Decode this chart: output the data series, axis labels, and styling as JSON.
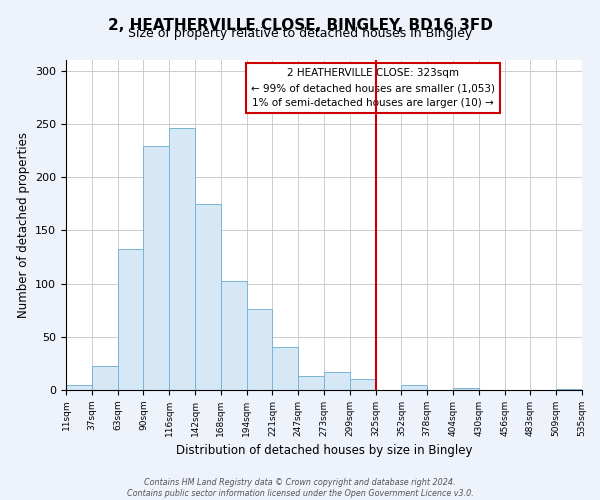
{
  "title": "2, HEATHERVILLE CLOSE, BINGLEY, BD16 3FD",
  "subtitle": "Size of property relative to detached houses in Bingley",
  "xlabel": "Distribution of detached houses by size in Bingley",
  "ylabel": "Number of detached properties",
  "bin_labels": [
    "11sqm",
    "37sqm",
    "63sqm",
    "90sqm",
    "116sqm",
    "142sqm",
    "168sqm",
    "194sqm",
    "221sqm",
    "247sqm",
    "273sqm",
    "299sqm",
    "325sqm",
    "352sqm",
    "378sqm",
    "404sqm",
    "430sqm",
    "456sqm",
    "483sqm",
    "509sqm",
    "535sqm"
  ],
  "bar_heights": [
    5,
    23,
    132,
    229,
    246,
    175,
    102,
    76,
    40,
    13,
    17,
    10,
    0,
    5,
    0,
    2,
    0,
    0,
    0,
    1
  ],
  "bar_color": "#d6e8f5",
  "bar_edgecolor": "#7ab4d4",
  "vline_index": 12,
  "vline_color": "#cc0000",
  "annotation_title": "2 HEATHERVILLE CLOSE: 323sqm",
  "annotation_line1": "← 99% of detached houses are smaller (1,053)",
  "annotation_line2": "1% of semi-detached houses are larger (10) →",
  "annotation_box_color": "#ffffff",
  "annotation_box_edgecolor": "#cc0000",
  "ylim": [
    0,
    310
  ],
  "yticks": [
    0,
    50,
    100,
    150,
    200,
    250,
    300
  ],
  "footer1": "Contains HM Land Registry data © Crown copyright and database right 2024.",
  "footer2": "Contains public sector information licensed under the Open Government Licence v3.0.",
  "bg_color": "#eef2fb",
  "plot_bg_color": "#ffffff",
  "grid_color": "#cccccc"
}
